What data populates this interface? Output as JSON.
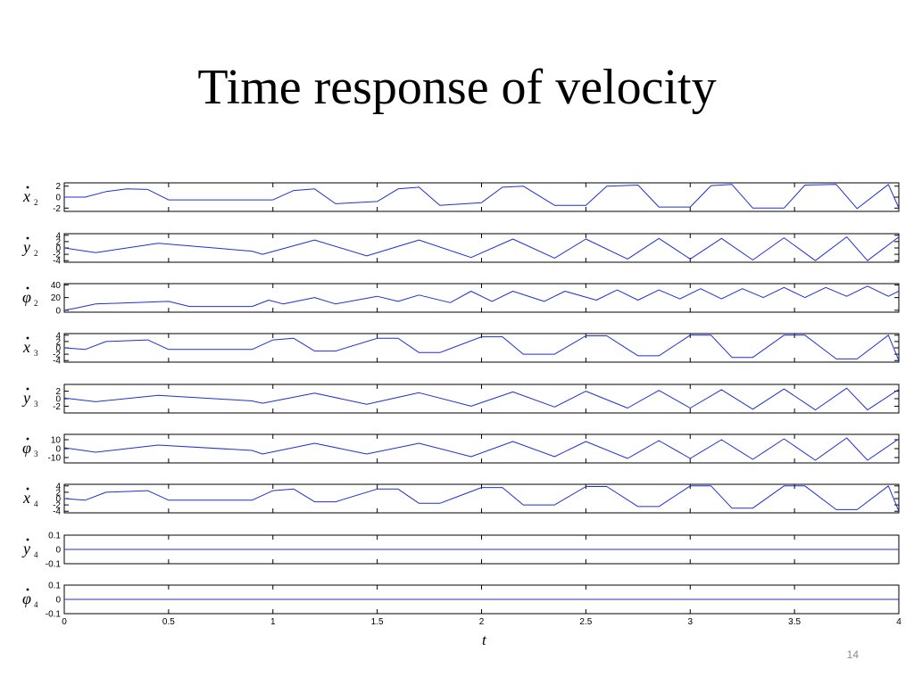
{
  "slide": {
    "title": "Time response of velocity",
    "page_number": "14"
  },
  "colors": {
    "series": "#1f2fd6",
    "axis": "#000000",
    "accent_tail": "#0000aa"
  },
  "chart_data": {
    "type": "line",
    "xlabel": "t",
    "xlim": [
      0,
      4
    ],
    "xticks": [
      0,
      0.5,
      1,
      1.5,
      2,
      2.5,
      3,
      3.5,
      4
    ],
    "xtick_labels": [
      "0",
      "0.5",
      "1",
      "1.5",
      "2",
      "2.5",
      "3",
      "3.5",
      "4"
    ],
    "grid": false,
    "panels": [
      {
        "name": "x2dot",
        "sym": "x",
        "sub": "2",
        "ylim": [
          -2.6,
          2.6
        ],
        "yticks": [
          2,
          0,
          -2
        ],
        "ytick_labels": [
          "2",
          "0",
          "-2"
        ],
        "series": [
          {
            "t": [
              0,
              0.1,
              0.2,
              0.3,
              0.4,
              0.5,
              0.6,
              0.8,
              1.0,
              1.1,
              1.2,
              1.3,
              1.5,
              1.6,
              1.7,
              1.8,
              2.0,
              2.1,
              2.2,
              2.35,
              2.5,
              2.6,
              2.75,
              2.85,
              3.0,
              3.1,
              3.2,
              3.3,
              3.45,
              3.55,
              3.7,
              3.8,
              3.95,
              4.0
            ],
            "values": [
              0,
              0,
              1.0,
              1.5,
              1.4,
              -0.5,
              -0.5,
              -0.5,
              -0.5,
              1.2,
              1.5,
              -1.2,
              -0.8,
              1.5,
              1.8,
              -1.5,
              -1.0,
              1.8,
              2.0,
              -1.5,
              -1.5,
              2.0,
              2.2,
              -1.8,
              -1.8,
              2.1,
              2.3,
              -2.0,
              -2.0,
              2.2,
              2.3,
              -2.1,
              2.3,
              -2.0
            ]
          }
        ]
      },
      {
        "name": "y2dot",
        "sym": "y",
        "sub": "2",
        "ylim": [
          -4.5,
          4.5
        ],
        "yticks": [
          4,
          2,
          0,
          -2,
          -4
        ],
        "ytick_labels": [
          "4",
          "2",
          "0",
          "-2",
          "-4"
        ],
        "series": [
          {
            "t": [
              0,
              0.15,
              0.45,
              0.9,
              0.95,
              1.2,
              1.45,
              1.7,
              1.95,
              2.15,
              2.35,
              2.5,
              2.7,
              2.85,
              3.0,
              3.15,
              3.3,
              3.45,
              3.6,
              3.75,
              3.85,
              4.0
            ],
            "values": [
              0,
              -1.5,
              1.5,
              -1.0,
              -2.0,
              2.5,
              -2.5,
              2.5,
              -3.0,
              2.8,
              -3.2,
              2.8,
              -3.5,
              3.0,
              -3.5,
              3.0,
              -3.8,
              3.2,
              -4.0,
              3.5,
              -4.0,
              3.5
            ]
          }
        ]
      },
      {
        "name": "phi2dot",
        "sym": "φ",
        "sub": "2",
        "ylim": [
          -3,
          42
        ],
        "yticks": [
          40,
          20,
          0
        ],
        "ytick_labels": [
          "40",
          "20",
          "0"
        ],
        "series": [
          {
            "t": [
              0,
              0.05,
              0.15,
              0.5,
              0.6,
              0.9,
              0.98,
              1.05,
              1.2,
              1.3,
              1.5,
              1.6,
              1.7,
              1.85,
              1.95,
              2.05,
              2.15,
              2.3,
              2.4,
              2.55,
              2.65,
              2.75,
              2.85,
              2.95,
              3.05,
              3.15,
              3.25,
              3.35,
              3.45,
              3.55,
              3.65,
              3.75,
              3.85,
              3.95,
              4.0
            ],
            "values": [
              0,
              3,
              10,
              14,
              6,
              6,
              16,
              10,
              20,
              10,
              22,
              14,
              24,
              12,
              30,
              14,
              30,
              14,
              30,
              16,
              32,
              16,
              32,
              18,
              34,
              18,
              34,
              20,
              36,
              20,
              36,
              22,
              38,
              22,
              30
            ]
          }
        ]
      },
      {
        "name": "x3dot",
        "sym": "x",
        "sub": "3",
        "ylim": [
          -4.5,
          4.5
        ],
        "yticks": [
          4,
          2,
          0,
          -2,
          -4
        ],
        "ytick_labels": [
          "4",
          "2",
          "0",
          "-2",
          "-4"
        ],
        "series": [
          {
            "t": [
              0,
              0.1,
              0.2,
              0.4,
              0.5,
              0.6,
              0.9,
              1.0,
              1.1,
              1.2,
              1.3,
              1.5,
              1.6,
              1.7,
              1.8,
              2.0,
              2.1,
              2.2,
              2.35,
              2.5,
              2.6,
              2.75,
              2.85,
              3.0,
              3.1,
              3.2,
              3.3,
              3.45,
              3.55,
              3.7,
              3.8,
              3.95,
              4.0
            ],
            "values": [
              0,
              -0.5,
              2.0,
              2.5,
              -0.5,
              -0.5,
              -0.5,
              2.5,
              3.0,
              -1.0,
              -1.0,
              3.0,
              3.0,
              -1.5,
              -1.5,
              3.5,
              3.5,
              -2.0,
              -2.0,
              3.8,
              3.8,
              -2.5,
              -2.5,
              4.0,
              4.0,
              -3.0,
              -3.0,
              4.0,
              4.0,
              -3.5,
              -3.5,
              4.0,
              -4.0
            ]
          }
        ]
      },
      {
        "name": "y3dot",
        "sym": "y",
        "sub": "3",
        "ylim": [
          -3.8,
          3.8
        ],
        "yticks": [
          2,
          0,
          -2
        ],
        "ytick_labels": [
          "2",
          "0",
          "-2"
        ],
        "series": [
          {
            "t": [
              0,
              0.15,
              0.45,
              0.9,
              0.95,
              1.2,
              1.45,
              1.7,
              1.95,
              2.15,
              2.35,
              2.5,
              2.7,
              2.85,
              3.0,
              3.15,
              3.3,
              3.45,
              3.6,
              3.75,
              3.85,
              4.0
            ],
            "values": [
              0.2,
              -0.8,
              0.9,
              -0.6,
              -1.2,
              1.5,
              -1.5,
              1.6,
              -2.0,
              1.8,
              -2.2,
              2.0,
              -2.5,
              2.2,
              -2.5,
              2.4,
              -2.8,
              2.6,
              -3.0,
              2.8,
              -3.0,
              2.5
            ]
          }
        ]
      },
      {
        "name": "phi3dot",
        "sym": "φ",
        "sub": "3",
        "ylim": [
          -16,
          16
        ],
        "yticks": [
          10,
          0,
          -10
        ],
        "ytick_labels": [
          "10",
          "0",
          "-10"
        ],
        "series": [
          {
            "t": [
              0,
              0.15,
              0.45,
              0.9,
              0.95,
              1.2,
              1.45,
              1.7,
              1.95,
              2.15,
              2.35,
              2.5,
              2.7,
              2.85,
              3.0,
              3.15,
              3.3,
              3.45,
              3.6,
              3.75,
              3.85,
              4.0
            ],
            "values": [
              1,
              -4,
              4,
              -2,
              -6,
              6,
              -6,
              6,
              -9,
              8,
              -9,
              8,
              -11,
              9,
              -11,
              10,
              -12,
              11,
              -13,
              12,
              -13,
              11
            ]
          }
        ]
      },
      {
        "name": "x4dot",
        "sym": "x",
        "sub": "4",
        "ylim": [
          -4.5,
          4.5
        ],
        "yticks": [
          4,
          2,
          0,
          -2,
          -4
        ],
        "ytick_labels": [
          "4",
          "2",
          "0",
          "-2",
          "-4"
        ],
        "series": [
          {
            "t": [
              0,
              0.1,
              0.2,
              0.4,
              0.5,
              0.6,
              0.9,
              1.0,
              1.1,
              1.2,
              1.3,
              1.5,
              1.6,
              1.7,
              1.8,
              2.0,
              2.1,
              2.2,
              2.35,
              2.5,
              2.6,
              2.75,
              2.85,
              3.0,
              3.1,
              3.2,
              3.3,
              3.45,
              3.55,
              3.7,
              3.8,
              3.95,
              4.0
            ],
            "values": [
              0,
              -0.5,
              2.0,
              2.5,
              -0.5,
              -0.5,
              -0.5,
              2.5,
              3.0,
              -1.0,
              -1.0,
              3.0,
              3.0,
              -1.5,
              -1.5,
              3.5,
              3.5,
              -2.0,
              -2.0,
              3.8,
              3.8,
              -2.5,
              -2.5,
              4.0,
              4.0,
              -3.0,
              -3.0,
              4.0,
              4.0,
              -3.5,
              -3.5,
              4.0,
              -4.0
            ]
          }
        ]
      },
      {
        "name": "y4dot",
        "sym": "y",
        "sub": "4",
        "ylim": [
          -0.1,
          0.1
        ],
        "yticks": [
          0.1,
          0,
          -0.1
        ],
        "ytick_labels": [
          "0.1",
          "0",
          "-0.1"
        ],
        "series": [
          {
            "t": [
              0,
              4
            ],
            "values": [
              0,
              0
            ]
          }
        ]
      },
      {
        "name": "phi4dot",
        "sym": "φ",
        "sub": "4",
        "ylim": [
          -0.1,
          0.1
        ],
        "yticks": [
          0.1,
          0,
          -0.1
        ],
        "ytick_labels": [
          "0.1",
          "0",
          "-0.1"
        ],
        "series": [
          {
            "t": [
              0,
              4
            ],
            "values": [
              0,
              0
            ]
          }
        ]
      }
    ]
  }
}
